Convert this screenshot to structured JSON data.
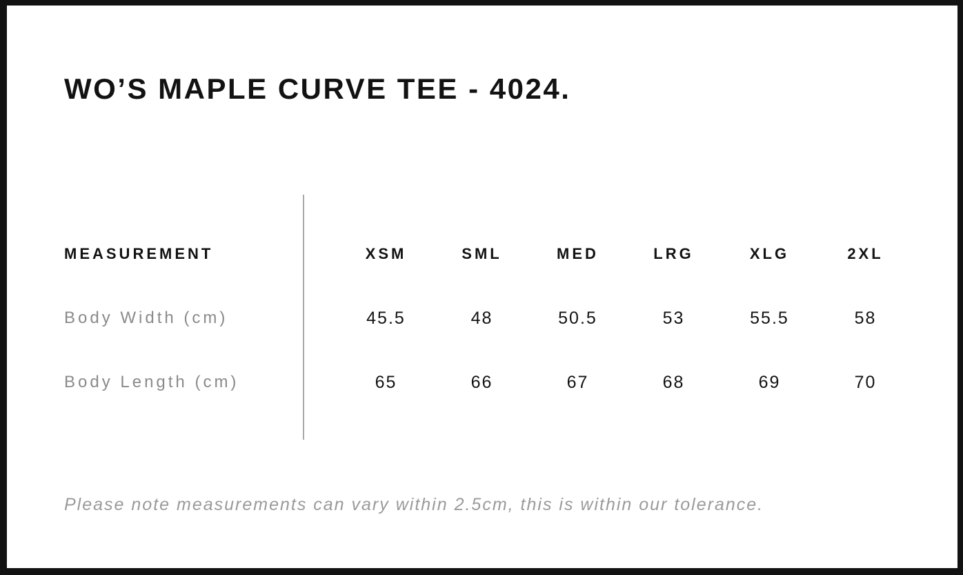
{
  "page": {
    "title": "WO’S MAPLE CURVE TEE - 4024.",
    "tolerance_note": "Please note measurements can vary within 2.5cm, this is within our tolerance."
  },
  "size_chart": {
    "measurement_header": "MEASUREMENT",
    "size_headers": [
      "XSM",
      "SML",
      "MED",
      "LRG",
      "XLG",
      "2XL"
    ],
    "rows": [
      {
        "label": "Body Width (cm)",
        "values": [
          "45.5",
          "48",
          "50.5",
          "53",
          "55.5",
          "58"
        ]
      },
      {
        "label": "Body Length (cm)",
        "values": [
          "65",
          "66",
          "67",
          "68",
          "69",
          "70"
        ]
      }
    ]
  },
  "colors": {
    "frame": "#121212",
    "heading_text": "#121212",
    "value_text": "#121212",
    "label_text": "#8a8a8a",
    "note_text": "#9a9a9a",
    "divider": "#a9a9a9",
    "background": "#ffffff"
  },
  "chart_data": {
    "type": "table",
    "title": "WO’S MAPLE CURVE TEE - 4024.",
    "columns": [
      "MEASUREMENT",
      "XSM",
      "SML",
      "MED",
      "LRG",
      "XLG",
      "2XL"
    ],
    "rows": [
      [
        "Body Width (cm)",
        45.5,
        48,
        50.5,
        53,
        55.5,
        58
      ],
      [
        "Body Length (cm)",
        65,
        66,
        67,
        68,
        69,
        70
      ]
    ],
    "footnote": "Please note measurements can vary within 2.5cm, this is within our tolerance."
  }
}
